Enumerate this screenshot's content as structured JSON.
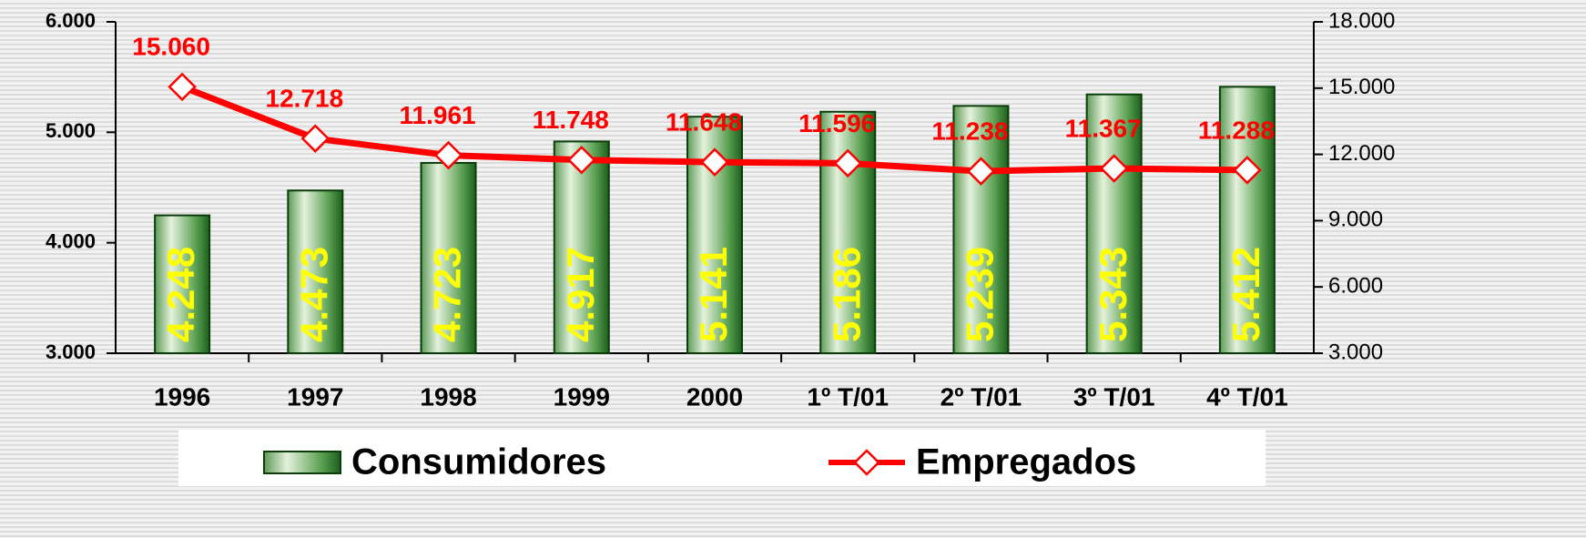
{
  "chart_data": {
    "type": "bar",
    "categories": [
      "1996",
      "1997",
      "1998",
      "1999",
      "2000",
      "1º T/01",
      "2º T/01",
      "3º T/01",
      "4º T/01"
    ],
    "series": [
      {
        "name": "Consumidores",
        "type": "bar",
        "color": "#2e8b2e",
        "values": [
          4248,
          4473,
          4723,
          4917,
          5141,
          5186,
          5239,
          5343,
          5412
        ],
        "value_labels": [
          "4.248",
          "4.473",
          "4.723",
          "4.917",
          "5.141",
          "5.186",
          "5.239",
          "5.343",
          "5.412"
        ]
      },
      {
        "name": "Empregados",
        "type": "line",
        "axis": "y2",
        "color": "#ff0000",
        "values": [
          15060,
          12718,
          11961,
          11748,
          11648,
          11596,
          11238,
          11367,
          11288
        ],
        "value_labels": [
          "15.060",
          "12.718",
          "11.961",
          "11.748",
          "11.648",
          "11.596",
          "11.238",
          "11.367",
          "11.288"
        ]
      }
    ],
    "ylim": [
      3000,
      6000
    ],
    "yticks": [
      {
        "value": 3000,
        "label": "3.000"
      },
      {
        "value": 4000,
        "label": "4.000"
      },
      {
        "value": 5000,
        "label": "5.000"
      },
      {
        "value": 6000,
        "label": "6.000"
      }
    ],
    "y2lim": [
      3000,
      18000
    ],
    "y2ticks": [
      {
        "value": 3000,
        "label": "3.000"
      },
      {
        "value": 6000,
        "label": "6.000"
      },
      {
        "value": 9000,
        "label": "9.000"
      },
      {
        "value": 12000,
        "label": "12.000"
      },
      {
        "value": 15000,
        "label": "15.000"
      },
      {
        "value": 18000,
        "label": "18.000"
      }
    ],
    "legend": "bottom"
  }
}
